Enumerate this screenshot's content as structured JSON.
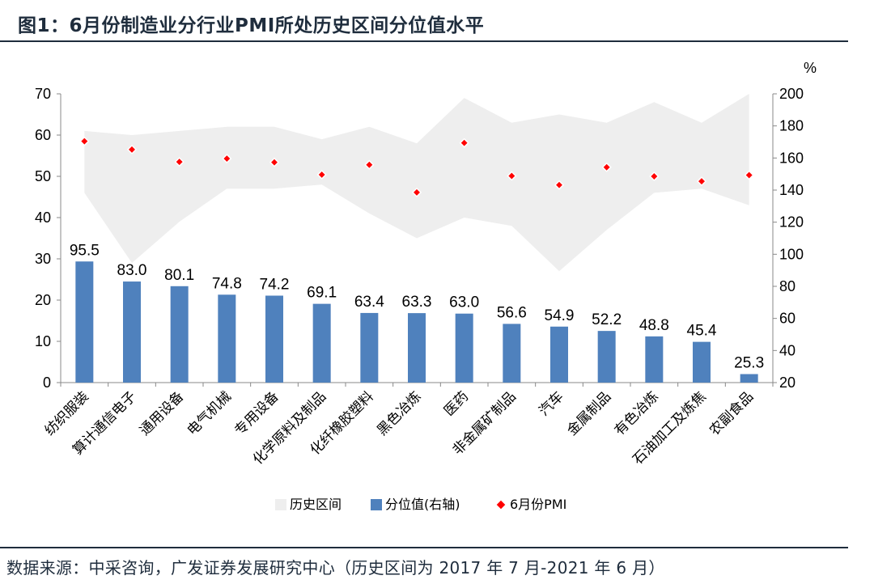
{
  "title": "图1：6月份制造业分行业PMI所处历史区间分位值水平",
  "source": "数据来源：中采咨询，广发证券发展研究中心（历史区间为 2017 年 7 月-2021 年 6 月）",
  "chart_data": {
    "type": "bar+scatter+area",
    "categories": [
      "纺织服装",
      "算计通信电子",
      "通用设备",
      "电气机械",
      "专用设备",
      "化学原料及制品",
      "化纤橡胶塑料",
      "黑色冶炼",
      "医药",
      "非金属矿制品",
      "汽车",
      "金属制品",
      "有色冶炼",
      "石油加工及炼焦",
      "农副食品"
    ],
    "left_axis": {
      "ticks": [
        0,
        10,
        20,
        30,
        40,
        50,
        60,
        70
      ],
      "ylim": [
        0,
        70
      ]
    },
    "right_axis": {
      "unit": "%",
      "ticks": [
        20,
        40,
        60,
        80,
        100,
        120,
        140,
        160,
        180,
        200
      ],
      "ylim": [
        20,
        200
      ]
    },
    "series": [
      {
        "name": "历史区间",
        "type": "area",
        "axis": "left",
        "color": "#eeeeee",
        "low": [
          46,
          29,
          39,
          47,
          47,
          48,
          41,
          35,
          40,
          38,
          27,
          37,
          46,
          47,
          43
        ],
        "high": [
          61,
          60,
          61,
          62,
          62,
          59,
          62,
          58,
          69,
          63,
          65,
          63,
          68,
          63,
          70
        ]
      },
      {
        "name": "分位值(右轴)",
        "type": "bar",
        "axis": "right",
        "color": "#4f81bd",
        "values": [
          95.5,
          83.0,
          80.1,
          74.8,
          74.2,
          69.1,
          63.4,
          63.3,
          63.0,
          56.6,
          54.9,
          52.2,
          48.8,
          45.4,
          25.3
        ],
        "labels": [
          "95.5",
          "83.0",
          "80.1",
          "74.8",
          "74.2",
          "69.1",
          "63.4",
          "63.3",
          "63.0",
          "56.6",
          "54.9",
          "52.2",
          "48.8",
          "45.4",
          "25.3"
        ]
      },
      {
        "name": "6月份PMI",
        "type": "scatter",
        "axis": "left",
        "color": "#ff0000",
        "values": [
          58.5,
          56.5,
          53.5,
          54.3,
          53.4,
          50.4,
          52.8,
          46.1,
          58.1,
          50.1,
          47.9,
          52.2,
          50.0,
          48.8,
          50.3
        ]
      }
    ],
    "legend": [
      "历史区间",
      "分位值(右轴)",
      "6月份PMI"
    ],
    "legend_position": "bottom"
  }
}
